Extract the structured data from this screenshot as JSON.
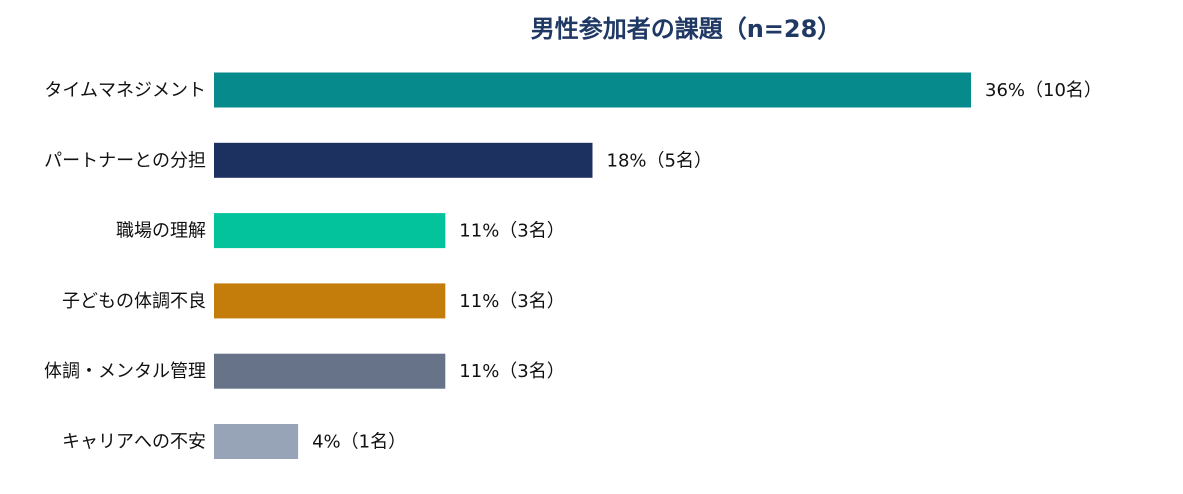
{
  "chart_data": {
    "type": "bar",
    "orientation": "horizontal",
    "title": "男性参加者の課題（n=28）",
    "xlabel": "",
    "ylabel": "",
    "grid": false,
    "legend": "none",
    "xlim": [
      0,
      36
    ],
    "categories": [
      "タイムマネジメント",
      "パートナーとの分担",
      "職場の理解",
      "子どもの体調不良",
      "体調・メンタル管理",
      "キャリアへの不安"
    ],
    "values": [
      36,
      18,
      11,
      11,
      11,
      4
    ],
    "data_labels": [
      "36%（10名）",
      "18%（5名）",
      "11%（3名）",
      "11%（3名）",
      "11%（3名）",
      "4%（1名）"
    ],
    "colors": [
      "#078a8b",
      "#1c315f",
      "#03c39c",
      "#c47c0b",
      "#677389",
      "#97a4b8"
    ]
  }
}
